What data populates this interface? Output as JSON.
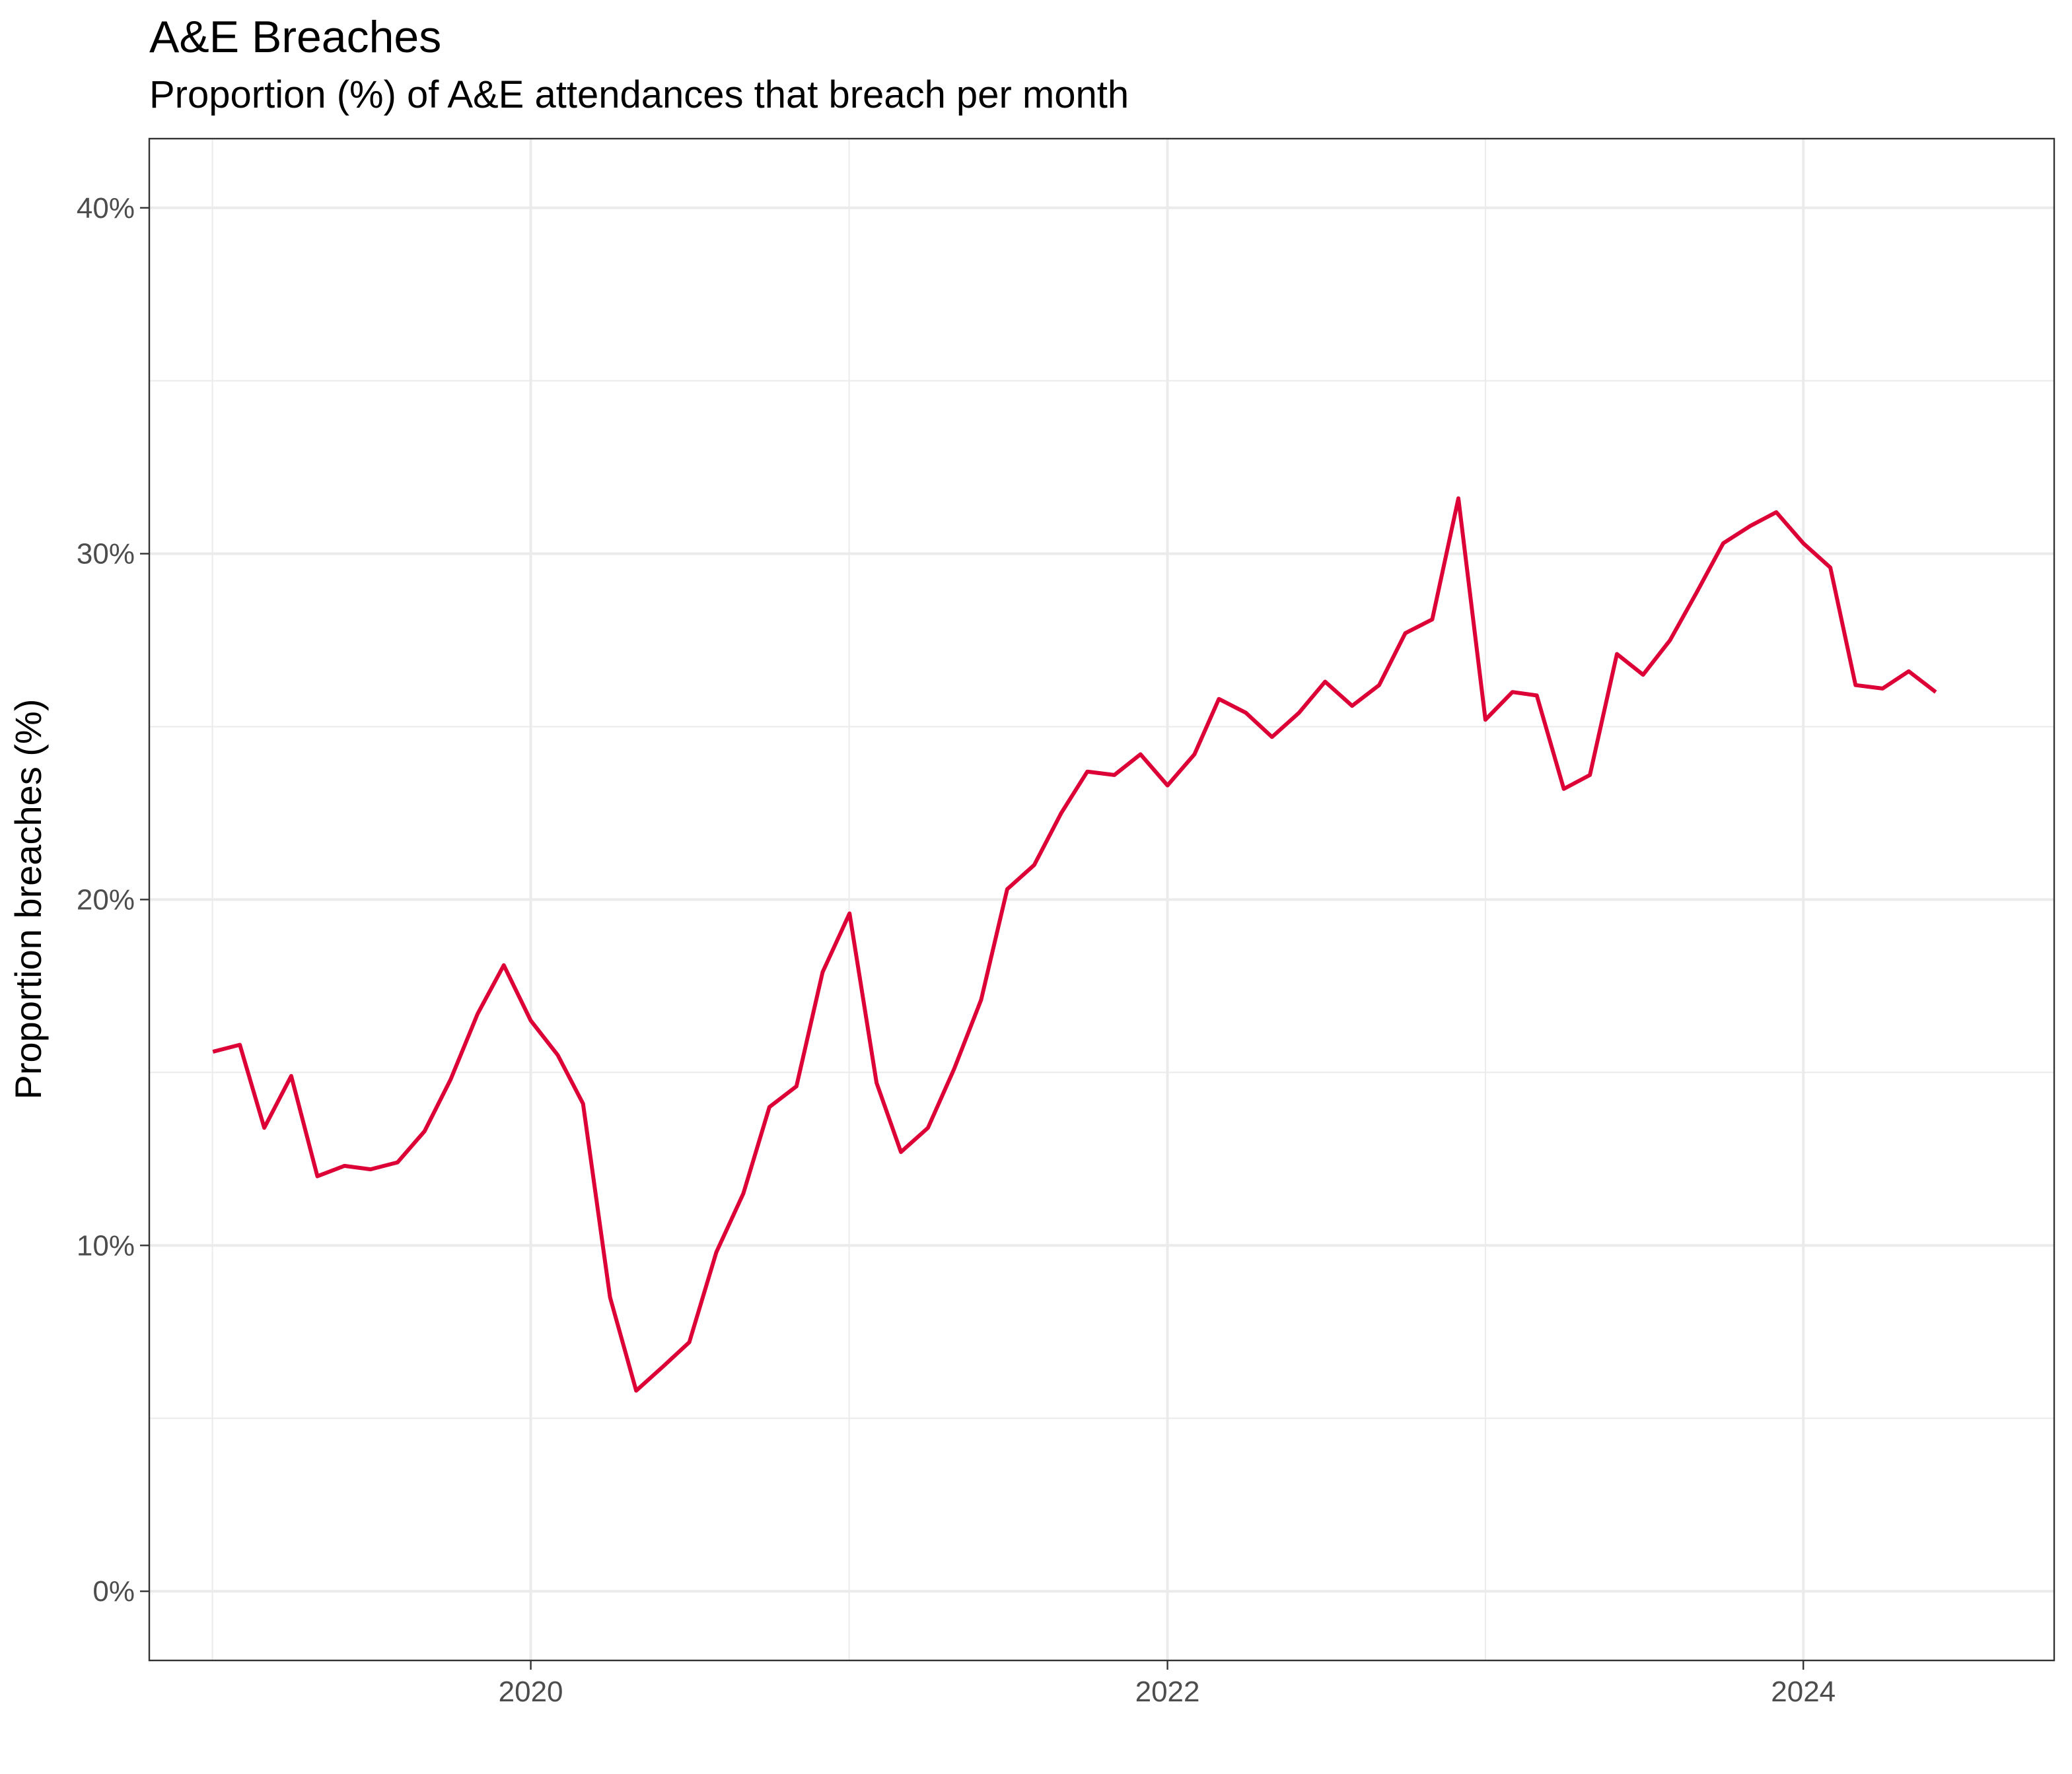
{
  "chart_data": {
    "type": "line",
    "title": "A&E Breaches",
    "subtitle": "Proportion (%) of A&E attendances that breach per month",
    "xlabel": "",
    "ylabel": "Proportion breaches (%)",
    "xlim": [
      "2018-10-20",
      "2024-10-15"
    ],
    "ylim": [
      -2,
      42
    ],
    "x_ticks": [
      {
        "date": "2020-01-01",
        "label": "2020"
      },
      {
        "date": "2022-01-01",
        "label": "2022"
      },
      {
        "date": "2024-01-01",
        "label": "2024"
      }
    ],
    "y_ticks": [
      {
        "value": 0,
        "label": "0%"
      },
      {
        "value": 10,
        "label": "10%"
      },
      {
        "value": 20,
        "label": "20%"
      },
      {
        "value": 30,
        "label": "30%"
      },
      {
        "value": 40,
        "label": "40%"
      }
    ],
    "grid": true,
    "line_color": "#DC0036",
    "series": [
      {
        "x": [
          "2019-01",
          "2019-02",
          "2019-03",
          "2019-04",
          "2019-05",
          "2019-06",
          "2019-07",
          "2019-08",
          "2019-09",
          "2019-10",
          "2019-11",
          "2019-12",
          "2020-01",
          "2020-02",
          "2020-03",
          "2020-04",
          "2020-05",
          "2020-06",
          "2020-07",
          "2020-08",
          "2020-09",
          "2020-10",
          "2020-11",
          "2020-12",
          "2021-01",
          "2021-02",
          "2021-03",
          "2021-04",
          "2021-05",
          "2021-06",
          "2021-07",
          "2021-08",
          "2021-09",
          "2021-10",
          "2021-11",
          "2021-12",
          "2022-01",
          "2022-02",
          "2022-03",
          "2022-04",
          "2022-05",
          "2022-06",
          "2022-07",
          "2022-08",
          "2022-09",
          "2022-10",
          "2022-11",
          "2022-12",
          "2023-01",
          "2023-02",
          "2023-03",
          "2023-04",
          "2023-05",
          "2023-06",
          "2023-07",
          "2023-08",
          "2023-09",
          "2023-10",
          "2023-11",
          "2023-12",
          "2024-01",
          "2024-02",
          "2024-03",
          "2024-04",
          "2024-05",
          "2024-06"
        ],
        "values": [
          15.6,
          15.8,
          13.4,
          14.9,
          12.0,
          12.3,
          12.2,
          12.4,
          13.3,
          14.8,
          16.7,
          18.1,
          16.5,
          15.5,
          14.1,
          8.5,
          5.8,
          6.5,
          7.2,
          9.8,
          11.5,
          14.0,
          14.6,
          17.9,
          19.6,
          14.7,
          12.7,
          13.4,
          15.1,
          17.1,
          20.3,
          21.0,
          22.5,
          23.7,
          23.6,
          24.2,
          23.3,
          24.2,
          25.8,
          25.4,
          24.7,
          25.4,
          26.3,
          25.6,
          26.2,
          27.7,
          28.1,
          31.6,
          25.2,
          26.0,
          25.9,
          23.2,
          23.6,
          27.1,
          26.5,
          27.5,
          28.9,
          30.3,
          30.8,
          31.2,
          30.3,
          29.6,
          26.2,
          26.1,
          26.6,
          26.0
        ]
      }
    ]
  }
}
